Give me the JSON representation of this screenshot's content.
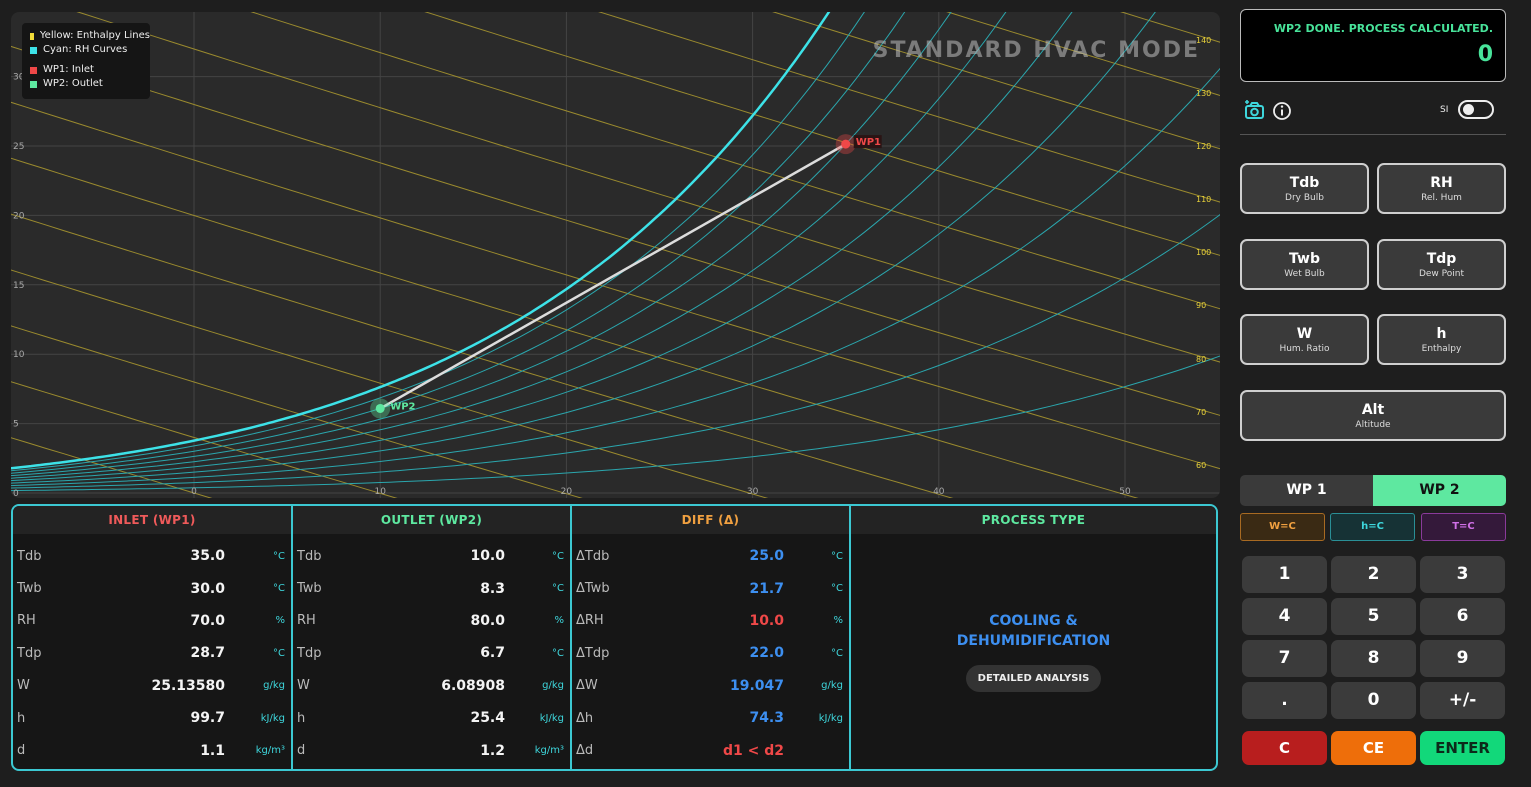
{
  "chart": {
    "mode_title": "STANDARD HVAC MODE",
    "legend": {
      "enthalpy": {
        "label": "Yellow: Enthalpy Lines",
        "color": "#f2dc3a"
      },
      "rh": {
        "label": "Cyan: RH Curves",
        "color": "#3de2e8"
      },
      "wp1": {
        "label": "WP1: Inlet",
        "color": "#ef4848"
      },
      "wp2": {
        "label": "WP2: Outlet",
        "color": "#5ee8a0"
      }
    },
    "x_ticks": [
      "0",
      "10",
      "20",
      "30",
      "40",
      "50"
    ],
    "y_ticks": [
      "0",
      "5",
      "10",
      "15",
      "20",
      "25",
      "30"
    ],
    "enthalpy_ticks": [
      "140",
      "130",
      "120",
      "110",
      "100",
      "90",
      "80",
      "70",
      "60"
    ],
    "points": {
      "wp1": {
        "label": "WP1",
        "tdb": 35.0,
        "w": 25.1358
      },
      "wp2": {
        "label": "WP2",
        "tdb": 10.0,
        "w": 6.08908
      }
    }
  },
  "table": {
    "inlet": {
      "header": "INLET (WP1)",
      "rows": [
        {
          "label": "Tdb",
          "value": "35.0",
          "unit": "°C"
        },
        {
          "label": "Twb",
          "value": "30.0",
          "unit": "°C"
        },
        {
          "label": "RH",
          "value": "70.0",
          "unit": "%"
        },
        {
          "label": "Tdp",
          "value": "28.7",
          "unit": "°C"
        },
        {
          "label": "W",
          "value": "25.13580",
          "unit": "g/kg"
        },
        {
          "label": "h",
          "value": "99.7",
          "unit": "kJ/kg"
        },
        {
          "label": "d",
          "value": "1.1",
          "unit": "kg/m³"
        }
      ]
    },
    "outlet": {
      "header": "OUTLET (WP2)",
      "rows": [
        {
          "label": "Tdb",
          "value": "10.0",
          "unit": "°C"
        },
        {
          "label": "Twb",
          "value": "8.3",
          "unit": "°C"
        },
        {
          "label": "RH",
          "value": "80.0",
          "unit": "%"
        },
        {
          "label": "Tdp",
          "value": "6.7",
          "unit": "°C"
        },
        {
          "label": "W",
          "value": "6.08908",
          "unit": "g/kg"
        },
        {
          "label": "h",
          "value": "25.4",
          "unit": "kJ/kg"
        },
        {
          "label": "d",
          "value": "1.2",
          "unit": "kg/m³"
        }
      ]
    },
    "diff": {
      "header": "DIFF (Δ)",
      "rows": [
        {
          "label": "ΔTdb",
          "value": "25.0",
          "unit": "°C",
          "color": "#3d8ff0"
        },
        {
          "label": "ΔTwb",
          "value": "21.7",
          "unit": "°C",
          "color": "#3d8ff0"
        },
        {
          "label": "ΔRH",
          "value": "10.0",
          "unit": "%",
          "color": "#ef4848"
        },
        {
          "label": "ΔTdp",
          "value": "22.0",
          "unit": "°C",
          "color": "#3d8ff0"
        },
        {
          "label": "ΔW",
          "value": "19.047",
          "unit": "g/kg",
          "color": "#3d8ff0"
        },
        {
          "label": "Δh",
          "value": "74.3",
          "unit": "kJ/kg",
          "color": "#3d8ff0"
        },
        {
          "label": "Δd",
          "value": "d1 < d2",
          "unit": "",
          "color": "#ef4848"
        }
      ]
    },
    "process": {
      "header": "PROCESS TYPE",
      "name_line1": "COOLING &",
      "name_line2": "DEHUMIDIFICATION",
      "detail_button": "DETAILED ANALYSIS"
    }
  },
  "panel": {
    "display_message": "WP2 DONE. PROCESS CALCULATED.",
    "display_value": "0",
    "si_label": "SI",
    "props": [
      {
        "key": "tdb",
        "title": "Tdb",
        "sub": "Dry Bulb"
      },
      {
        "key": "rh",
        "title": "RH",
        "sub": "Rel. Hum"
      },
      {
        "key": "twb",
        "title": "Twb",
        "sub": "Wet Bulb"
      },
      {
        "key": "tdp",
        "title": "Tdp",
        "sub": "Dew Point"
      },
      {
        "key": "w",
        "title": "W",
        "sub": "Hum. Ratio"
      },
      {
        "key": "h",
        "title": "h",
        "sub": "Enthalpy"
      }
    ],
    "alt": {
      "title": "Alt",
      "sub": "Altitude"
    },
    "wp_tabs": [
      "WP 1",
      "WP 2"
    ],
    "mini_buttons": [
      "W=C",
      "h=C",
      "T=C"
    ],
    "keys": [
      "1",
      "2",
      "3",
      "4",
      "5",
      "6",
      "7",
      "8",
      "9",
      ".",
      "0",
      "+/-"
    ],
    "fn_keys": [
      "C",
      "CE",
      "ENTER"
    ]
  }
}
